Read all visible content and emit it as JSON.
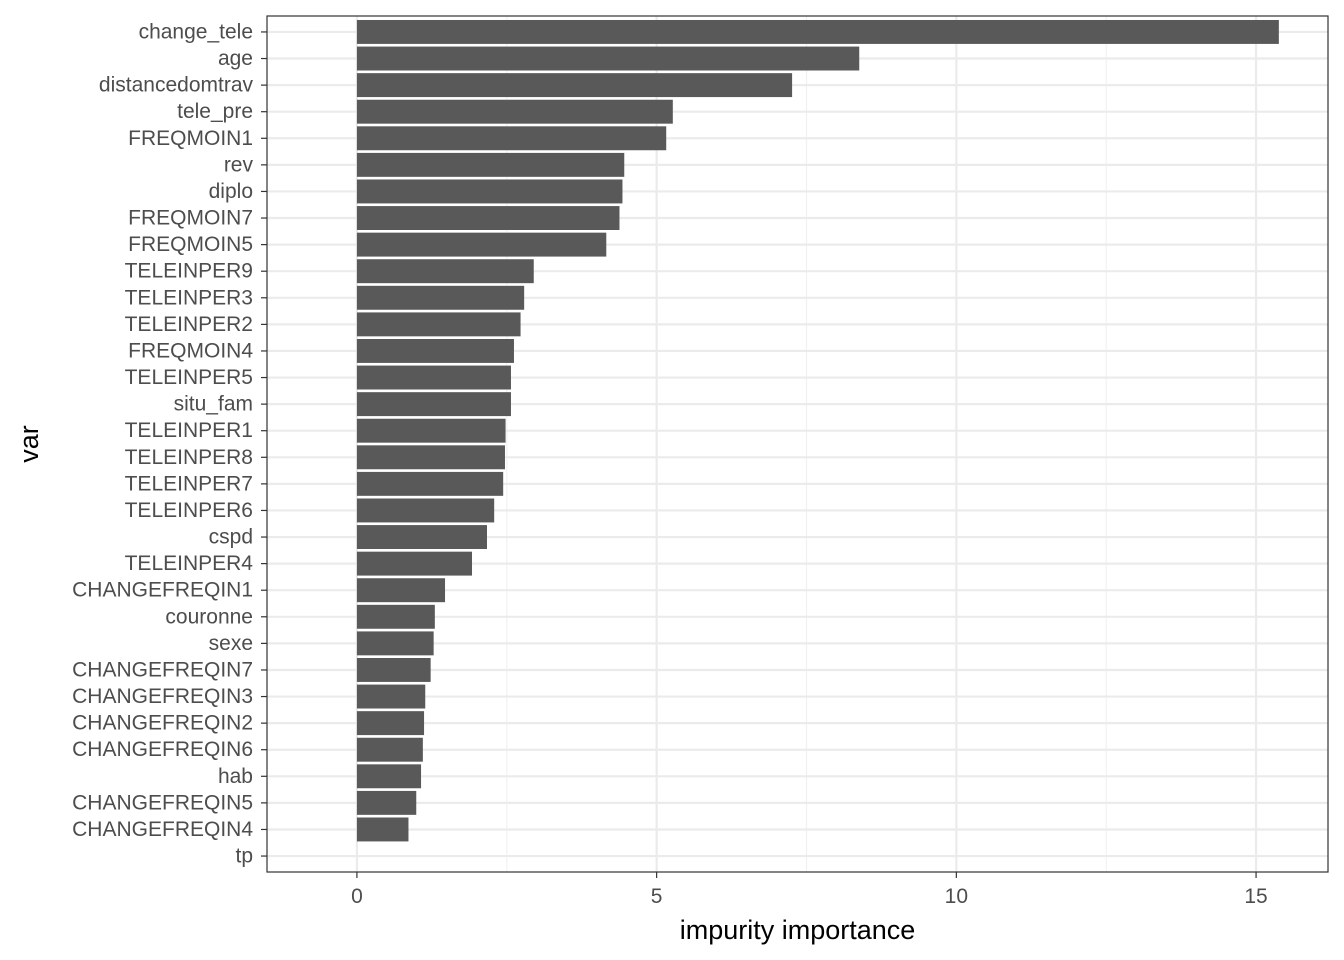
{
  "chart_data": {
    "type": "bar",
    "orientation": "horizontal",
    "xlabel": "impurity importance",
    "ylabel": "var",
    "xlim": [
      -1.5,
      16.2
    ],
    "x_ticks": [
      0,
      5,
      10,
      15
    ],
    "x_tick_labels": [
      "0",
      "5",
      "10",
      "15"
    ],
    "grid": true,
    "theme": "bw",
    "bar_color": "#595959",
    "categories": [
      "change_tele",
      "age",
      "distancedomtrav",
      "tele_pre",
      "FREQMOIN1",
      "rev",
      "diplo",
      "FREQMOIN7",
      "FREQMOIN5",
      "TELEINPER9",
      "TELEINPER3",
      "TELEINPER2",
      "FREQMOIN4",
      "TELEINPER5",
      "situ_fam",
      "TELEINPER1",
      "TELEINPER8",
      "TELEINPER7",
      "TELEINPER6",
      "cspd",
      "TELEINPER4",
      "CHANGEFREQIN1",
      "couronne",
      "sexe",
      "CHANGEFREQIN7",
      "CHANGEFREQIN3",
      "CHANGEFREQIN2",
      "CHANGEFREQIN6",
      "hab",
      "CHANGEFREQIN5",
      "CHANGEFREQIN4",
      "tp"
    ],
    "values": [
      15.38,
      8.38,
      7.26,
      5.27,
      5.16,
      4.46,
      4.43,
      4.38,
      4.16,
      2.95,
      2.79,
      2.73,
      2.62,
      2.57,
      2.57,
      2.48,
      2.47,
      2.44,
      2.29,
      2.17,
      1.92,
      1.47,
      1.3,
      1.28,
      1.23,
      1.14,
      1.12,
      1.1,
      1.07,
      0.99,
      0.86,
      0.0
    ]
  }
}
